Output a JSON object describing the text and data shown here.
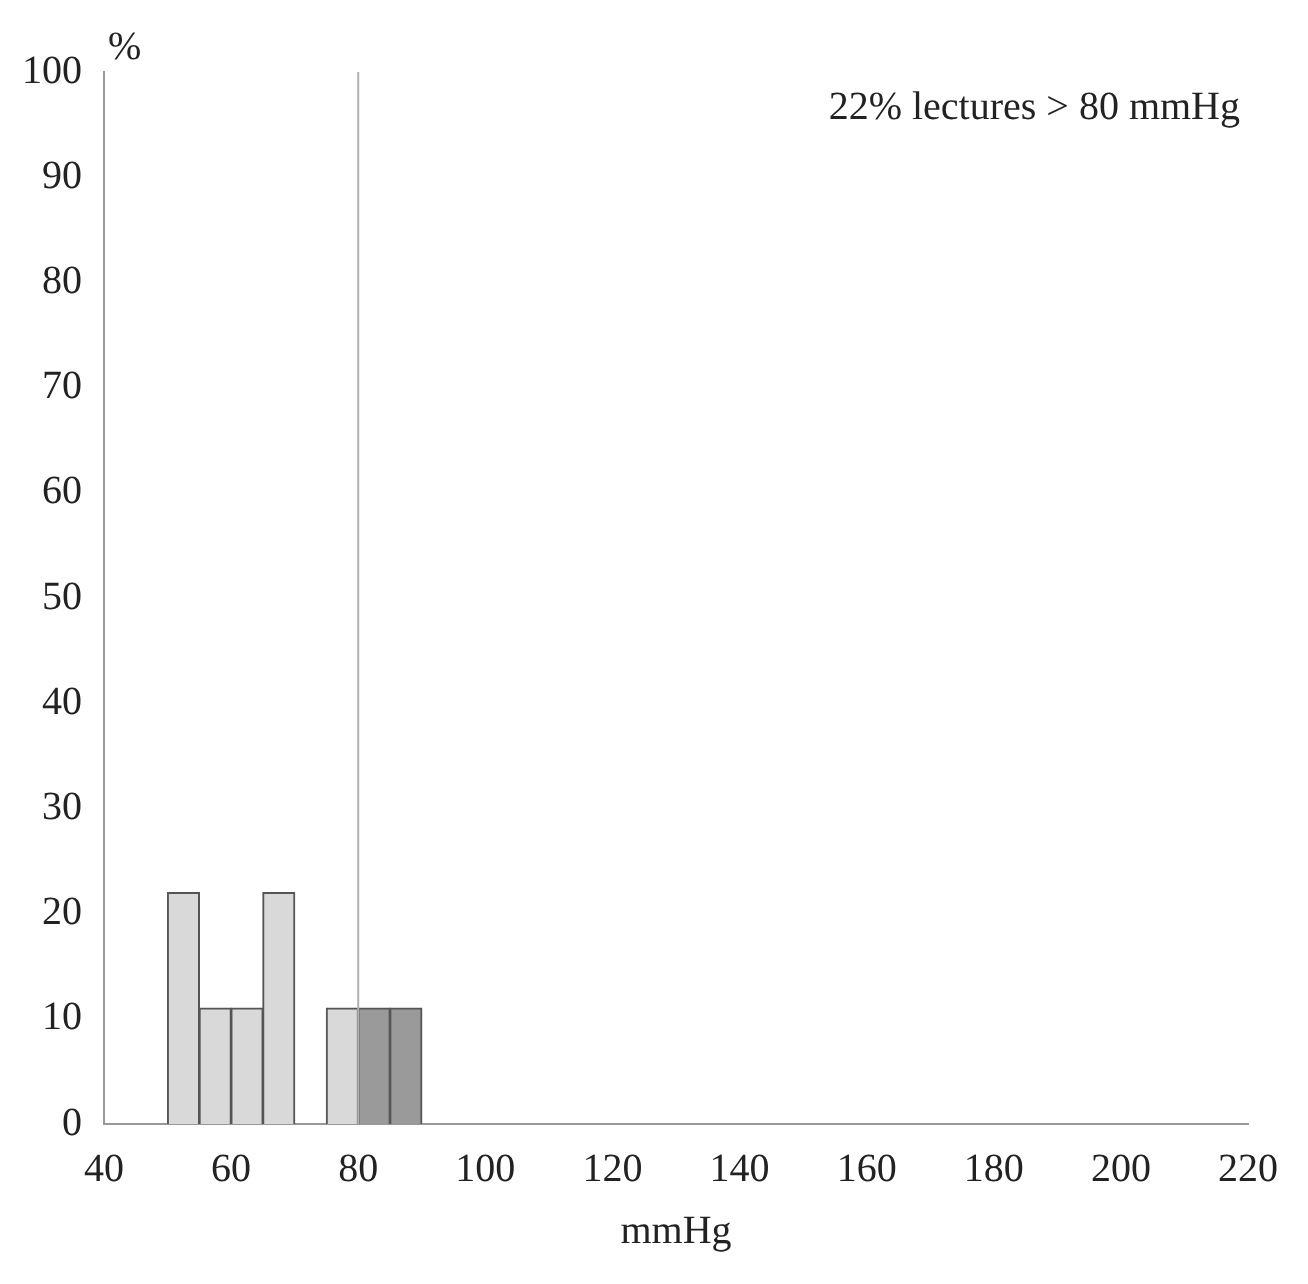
{
  "chart_data": {
    "type": "histogram",
    "xlabel": "mmHg",
    "ylabel": "%",
    "bins": [
      50,
      55,
      60,
      65,
      70,
      75,
      80,
      85,
      90
    ],
    "values": [
      22,
      11,
      11,
      22,
      0,
      11,
      11,
      11
    ],
    "colors": [
      "#d9d9d9",
      "#d9d9d9",
      "#d9d9d9",
      "#d9d9d9",
      "#d9d9d9",
      "#d9d9d9",
      "#9a9a9a",
      "#9a9a9a"
    ],
    "xlim": [
      40,
      220
    ],
    "xticks": [
      40,
      60,
      80,
      100,
      120,
      140,
      160,
      180,
      200,
      220
    ],
    "ylim": [
      0,
      100
    ],
    "yticks": [
      0,
      10,
      20,
      30,
      40,
      50,
      60,
      70,
      80,
      90,
      100
    ],
    "ref_lines": [
      {
        "axis": "x",
        "value": 80,
        "color": "#b0b0b0"
      }
    ],
    "annotations": [
      "22% lectures > 80 mmHg"
    ],
    "grid": false,
    "legend": false
  }
}
